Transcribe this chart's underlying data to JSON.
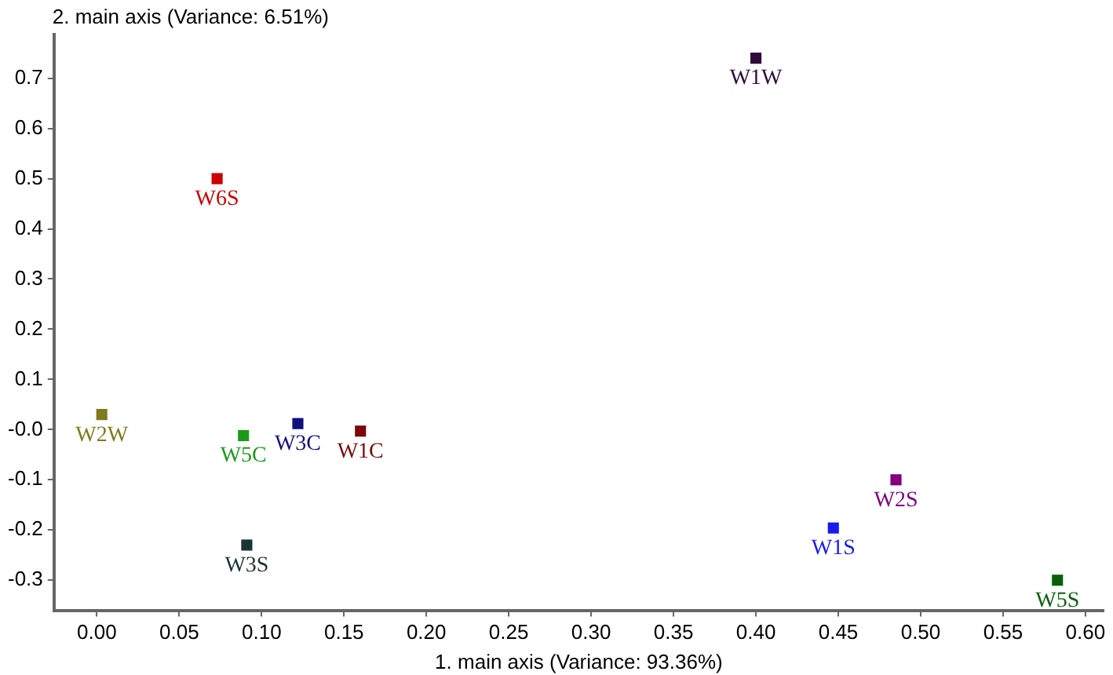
{
  "chart_data": {
    "type": "scatter",
    "xlabel": "1. main axis (Variance: 93.36%)",
    "ylabel": "2. main axis (Variance: 6.51%)",
    "xlim": [
      -0.026,
      0.611
    ],
    "ylim": [
      -0.36,
      0.787
    ],
    "xticks": [
      {
        "value": 0,
        "label": "0.00"
      },
      0.05,
      {
        "value": 0.1,
        "label": "0.10"
      },
      0.15,
      {
        "value": 0.2,
        "label": "0.20"
      },
      0.25,
      {
        "value": 0.3,
        "label": "0.30"
      },
      0.35,
      {
        "value": 0.4,
        "label": "0.40"
      },
      0.45,
      {
        "value": 0.5,
        "label": "0.50"
      },
      0.55,
      {
        "value": 0.6,
        "label": "0.60"
      }
    ],
    "yticks": [
      -0.3,
      -0.2,
      -0.1,
      {
        "value": 0,
        "label": "-0.0"
      },
      0.1,
      0.2,
      0.3,
      0.4,
      0.5,
      0.6,
      0.7
    ],
    "grid": false,
    "legend": false,
    "marker": "square",
    "series": [
      {
        "name": "W1W",
        "color": "#2e0a3a",
        "x": [
          0.4
        ],
        "values": [
          0.74
        ]
      },
      {
        "name": "W6S",
        "color": "#cc0000",
        "x": [
          0.073
        ],
        "values": [
          0.5
        ]
      },
      {
        "name": "W2W",
        "color": "#7f7a1a",
        "x": [
          0.003
        ],
        "values": [
          0.03
        ]
      },
      {
        "name": "W5C",
        "color": "#1a9a1a",
        "x": [
          0.089
        ],
        "values": [
          -0.012
        ]
      },
      {
        "name": "W3C",
        "color": "#10107f",
        "x": [
          0.122
        ],
        "values": [
          0.012
        ]
      },
      {
        "name": "W1C",
        "color": "#7a0a0a",
        "x": [
          0.16
        ],
        "values": [
          -0.003
        ]
      },
      {
        "name": "W3S",
        "color": "#1a3333",
        "x": [
          0.091
        ],
        "values": [
          -0.23
        ]
      },
      {
        "name": "W2S",
        "color": "#800080",
        "x": [
          0.485
        ],
        "values": [
          -0.1
        ]
      },
      {
        "name": "W1S",
        "color": "#1a1aee",
        "x": [
          0.447
        ],
        "values": [
          -0.196
        ]
      },
      {
        "name": "W5S",
        "color": "#0a600a",
        "x": [
          0.583
        ],
        "values": [
          -0.3
        ]
      }
    ]
  }
}
